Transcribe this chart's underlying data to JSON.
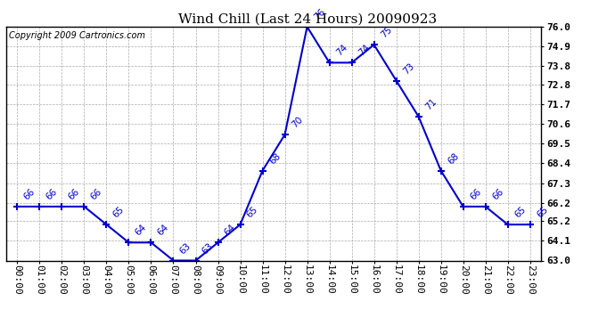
{
  "title": "Wind Chill (Last 24 Hours) 20090923",
  "copyright": "Copyright 2009 Cartronics.com",
  "hours": [
    "00:00",
    "01:00",
    "02:00",
    "03:00",
    "04:00",
    "05:00",
    "06:00",
    "07:00",
    "08:00",
    "09:00",
    "10:00",
    "11:00",
    "12:00",
    "13:00",
    "14:00",
    "15:00",
    "16:00",
    "17:00",
    "18:00",
    "19:00",
    "20:00",
    "21:00",
    "22:00",
    "23:00"
  ],
  "values": [
    66,
    66,
    66,
    66,
    65,
    64,
    64,
    63,
    63,
    64,
    65,
    68,
    70,
    76,
    74,
    74,
    75,
    73,
    71,
    68,
    66,
    66,
    65,
    65
  ],
  "ylim_min": 63.0,
  "ylim_max": 76.0,
  "yticks": [
    63.0,
    64.1,
    65.2,
    66.2,
    67.3,
    68.4,
    69.5,
    70.6,
    71.7,
    72.8,
    73.8,
    74.9,
    76.0
  ],
  "line_color": "#0000cc",
  "marker_color": "#0000cc",
  "bg_color": "#ffffff",
  "grid_color": "#aaaaaa",
  "title_fontsize": 11,
  "label_fontsize": 8,
  "annotation_fontsize": 7.5,
  "copyright_fontsize": 7
}
